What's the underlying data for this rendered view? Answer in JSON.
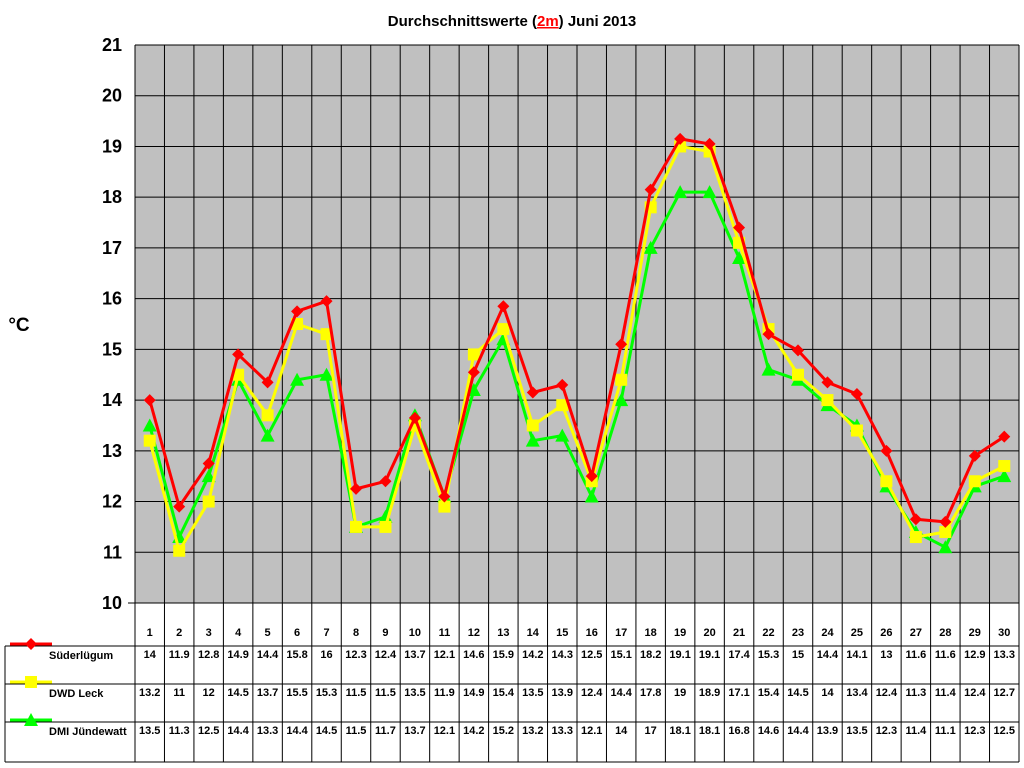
{
  "chart_data": {
    "type": "line",
    "title_parts": [
      "Durchschnittswerte (",
      "2m",
      ") Juni 2013"
    ],
    "ylabel": "°C",
    "ylim": [
      10,
      21
    ],
    "yticks": [
      10,
      11,
      12,
      13,
      14,
      15,
      16,
      17,
      18,
      19,
      20,
      21
    ],
    "grid": true,
    "legend": "table-below",
    "plot_background": "#c0c0c0",
    "categories": [
      "1",
      "2",
      "3",
      "4",
      "5",
      "6",
      "7",
      "8",
      "9",
      "10",
      "11",
      "12",
      "13",
      "14",
      "15",
      "16",
      "17",
      "18",
      "19",
      "20",
      "21",
      "22",
      "23",
      "24",
      "25",
      "26",
      "27",
      "28",
      "29",
      "30"
    ],
    "series": [
      {
        "name": "Süderlügum",
        "color": "#ff0000",
        "marker": "diamond",
        "values": [
          14.0,
          11.9,
          12.75,
          14.9,
          14.35,
          15.75,
          15.95,
          12.25,
          12.4,
          13.65,
          12.1,
          14.55,
          15.85,
          14.15,
          14.3,
          12.5,
          15.1,
          18.15,
          19.15,
          19.05,
          17.4,
          15.3,
          14.98,
          14.35,
          14.12,
          13.0,
          11.65,
          11.6,
          12.9,
          13.28
        ],
        "labels": [
          "14",
          "11.9",
          "12.8",
          "14.9",
          "14.4",
          "15.8",
          "16",
          "12.3",
          "12.4",
          "13.7",
          "12.1",
          "14.6",
          "15.9",
          "14.2",
          "14.3",
          "12.5",
          "15.1",
          "18.2",
          "19.1",
          "19.1",
          "17.4",
          "15.3",
          "15",
          "14.4",
          "14.1",
          "13",
          "11.6",
          "11.6",
          "12.9",
          "13.3"
        ]
      },
      {
        "name": "DWD Leck",
        "color": "#ffff00",
        "marker": "square",
        "values": [
          13.2,
          11.03,
          12.0,
          14.5,
          13.7,
          15.5,
          15.3,
          11.5,
          11.5,
          13.5,
          11.9,
          14.9,
          15.4,
          13.5,
          13.9,
          12.4,
          14.4,
          17.8,
          19.0,
          18.9,
          17.1,
          15.4,
          14.5,
          14.0,
          13.4,
          12.4,
          11.3,
          11.4,
          12.4,
          12.7
        ],
        "labels": [
          "13.2",
          "11",
          "12",
          "14.5",
          "13.7",
          "15.5",
          "15.3",
          "11.5",
          "11.5",
          "13.5",
          "11.9",
          "14.9",
          "15.4",
          "13.5",
          "13.9",
          "12.4",
          "14.4",
          "17.8",
          "19",
          "18.9",
          "17.1",
          "15.4",
          "14.5",
          "14",
          "13.4",
          "12.4",
          "11.3",
          "11.4",
          "12.4",
          "12.7"
        ]
      },
      {
        "name": "DMI Jündewatt",
        "color": "#00ff00",
        "marker": "triangle",
        "values": [
          13.5,
          11.3,
          12.5,
          14.4,
          13.3,
          14.4,
          14.5,
          11.5,
          11.7,
          13.7,
          12.1,
          14.2,
          15.2,
          13.2,
          13.3,
          12.1,
          14.0,
          17.0,
          18.1,
          18.1,
          16.8,
          14.6,
          14.4,
          13.9,
          13.5,
          12.3,
          11.4,
          11.1,
          12.3,
          12.5
        ],
        "labels": [
          "13.5",
          "11.3",
          "12.5",
          "14.4",
          "13.3",
          "14.4",
          "14.5",
          "11.5",
          "11.7",
          "13.7",
          "12.1",
          "14.2",
          "15.2",
          "13.2",
          "13.3",
          "12.1",
          "14",
          "17",
          "18.1",
          "18.1",
          "16.8",
          "14.6",
          "14.4",
          "13.9",
          "13.5",
          "12.3",
          "11.4",
          "11.1",
          "12.3",
          "12.5"
        ]
      }
    ]
  }
}
